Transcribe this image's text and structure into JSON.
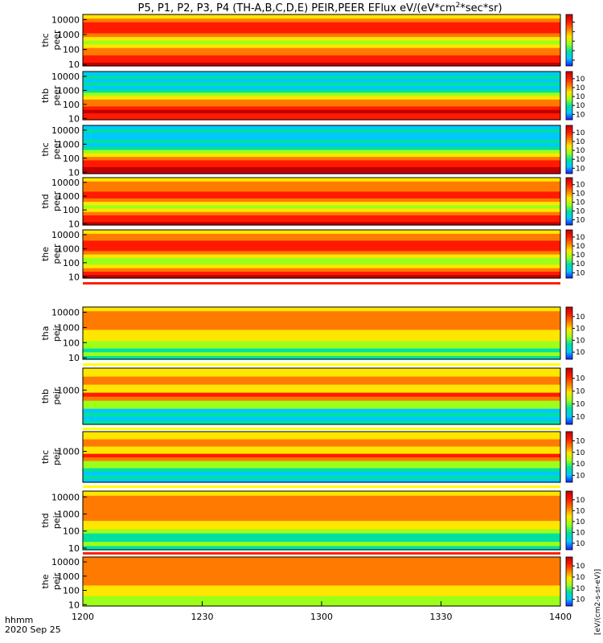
{
  "title": "P5, P1, P2, P3, P4 (TH-A,B,C,D,E) PEIR,PEER EFlux eV/(eV*cm",
  "title_sup": "2",
  "title_tail": "*sec*sr)",
  "colorbar_label": "[eV/(cm2-s-sr-eV)]",
  "time_label": "hhmm",
  "date_label": "2020 Sep 25",
  "colors": {
    "scale": [
      "#000000",
      "#1a1aff",
      "#00c8ff",
      "#00e0a0",
      "#9cff1a",
      "#ffe600",
      "#ff7a00",
      "#ff1a00",
      "#c00000"
    ],
    "separator": "#ff2000",
    "fill_gap": "#ffff00"
  },
  "chart_data": {
    "type": "heatmap",
    "x_ticks": [
      "1200",
      "1230",
      "1300",
      "1330",
      "1400"
    ],
    "x_range": [
      0,
      120
    ],
    "panels": [
      {
        "label": "thc",
        "sub": "peer",
        "y_ticks": [
          "10",
          "100",
          "1000",
          "10000"
        ],
        "y_range": [
          8,
          22000
        ],
        "cb_ticks": [
          "",
          "",
          "",
          "",
          ""
        ]
      },
      {
        "label": "thb",
        "sub": "peer",
        "y_ticks": [
          "10",
          "100",
          "1000",
          "10000"
        ],
        "y_range": [
          8,
          22000
        ],
        "cb_ticks": [
          "10",
          "10",
          "10",
          "10",
          "10"
        ]
      },
      {
        "label": "thc",
        "sub": "peer",
        "y_ticks": [
          "10",
          "100",
          "1000",
          "10000"
        ],
        "y_range": [
          8,
          22000
        ],
        "cb_ticks": [
          "10",
          "10",
          "10",
          "10",
          "10"
        ]
      },
      {
        "label": "thd",
        "sub": "peer",
        "y_ticks": [
          "10",
          "100",
          "1000",
          "10000"
        ],
        "y_range": [
          8,
          22000
        ],
        "cb_ticks": [
          "10",
          "10",
          "10",
          "10",
          "10"
        ]
      },
      {
        "label": "the",
        "sub": "peer",
        "y_ticks": [
          "10",
          "100",
          "1000",
          "10000"
        ],
        "y_range": [
          8,
          22000
        ],
        "cb_ticks": [
          "10",
          "10",
          "10",
          "10",
          "10"
        ]
      },
      {
        "label": "tha",
        "sub": "peir",
        "y_ticks": [
          "10",
          "100",
          "1000",
          "10000"
        ],
        "y_range": [
          8,
          22000
        ],
        "cb_ticks": [
          "10",
          "10",
          "10",
          "10"
        ]
      },
      {
        "label": "thb",
        "sub": "peir",
        "y_ticks": [
          "1000"
        ],
        "y_range": [
          8,
          22000
        ],
        "cb_ticks": [
          "10",
          "10",
          "10",
          "10"
        ]
      },
      {
        "label": "thc",
        "sub": "peir",
        "y_ticks": [
          "1000"
        ],
        "y_range": [
          8,
          22000
        ],
        "cb_ticks": [
          "10",
          "10",
          "10",
          "10"
        ]
      },
      {
        "label": "thd",
        "sub": "peir",
        "y_ticks": [
          "10",
          "100",
          "1000",
          "10000"
        ],
        "y_range": [
          8,
          22000
        ],
        "cb_ticks": [
          "10",
          "10",
          "10",
          "10",
          "10"
        ]
      },
      {
        "label": "the",
        "sub": "peir",
        "y_ticks": [
          "10",
          "100",
          "1000",
          "10000"
        ],
        "y_range": [
          8,
          22000
        ],
        "cb_ticks": [
          "10",
          "10",
          "10",
          "10"
        ]
      }
    ]
  }
}
